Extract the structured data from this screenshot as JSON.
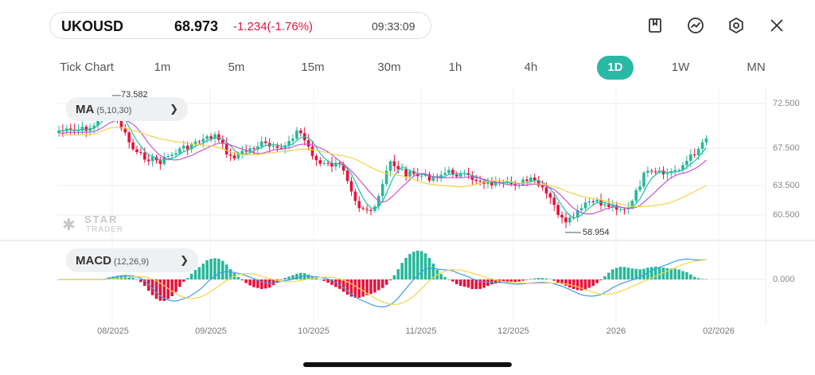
{
  "quote": {
    "symbol": "UKOUSD",
    "price": "68.973",
    "change": "-1.234(-1.76%)",
    "time": "09:33:09",
    "change_color": "#e5123d"
  },
  "toolbar_icons": [
    "bookmark-icon",
    "trend-icon",
    "settings-icon",
    "close-icon"
  ],
  "timeframes": [
    "Tick Chart",
    "1m",
    "5m",
    "15m",
    "30m",
    "1h",
    "4h",
    "1D",
    "1W",
    "MN"
  ],
  "active_timeframe": "1D",
  "indicators": {
    "main": {
      "name": "MA",
      "params": "(5,10,30)"
    },
    "sub": {
      "name": "MACD",
      "params": "(12,26,9)"
    }
  },
  "price_axis": [
    "72.500",
    "67.500",
    "63.500",
    "60.500"
  ],
  "macd_axis": "0.000",
  "date_axis": [
    "08/2025",
    "09/2025",
    "10/2025",
    "11/2025",
    "12/2025",
    "2026",
    "02/2026"
  ],
  "markers": {
    "high": "73.582",
    "low": "58.954"
  },
  "watermark": {
    "line1": "STAR",
    "line2": "TRADER"
  },
  "colors": {
    "up": "#26b89a",
    "down": "#e8123c",
    "accent": "#27b8a6",
    "ma5": "#22bfa7",
    "ma10": "#c455d6",
    "ma30": "#f2d34b",
    "macd_dif": "#3d9be9",
    "macd_dea": "#f2d34b"
  }
}
